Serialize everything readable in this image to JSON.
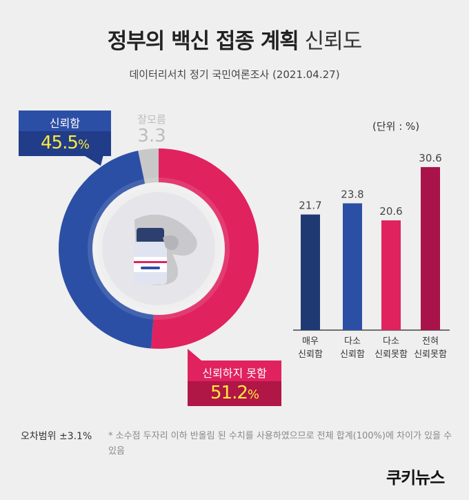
{
  "title": {
    "bold": "정부의 백신 접종 계획",
    "light": "신뢰도"
  },
  "subtitle": "데이터리서치 정기 국민여론조사 (2021.04.27)",
  "unit": "(단위 : %)",
  "colors": {
    "trust": "#2c4fa6",
    "distrust": "#e0225f",
    "dont_know": "#c8c8c8"
  },
  "chart_data": [
    {
      "type": "pie",
      "categories": [
        "신뢰함",
        "신뢰하지 못함",
        "잘모름"
      ],
      "values": [
        45.5,
        51.2,
        3.3
      ],
      "value_labels": [
        "45.5",
        "51.2",
        "3.3"
      ],
      "percent_sign": "%",
      "colors": [
        "#2c4fa6",
        "#e0225f",
        "#c8c8c8"
      ],
      "style": "donut"
    },
    {
      "type": "bar",
      "categories": [
        [
          "매우",
          "신뢰함"
        ],
        [
          "다소",
          "신뢰함"
        ],
        [
          "다소",
          "신뢰못함"
        ],
        [
          "전혀",
          "신뢰못함"
        ]
      ],
      "values": [
        21.7,
        23.8,
        20.6,
        30.6
      ],
      "value_labels": [
        "21.7",
        "23.8",
        "20.6",
        "30.6"
      ],
      "colors": [
        "#1f3a73",
        "#2c4fa6",
        "#e0225f",
        "#a8144a"
      ],
      "ylim": [
        0,
        35
      ]
    }
  ],
  "footer": {
    "margin_label": "오차범위 ±3.1%",
    "note": "* 소수점 두자리 이하 반올림 된 수치를 사용하였으므로 전체 합계(100%)에 차이가 있을 수 있음"
  },
  "logo": "쿠키뉴스"
}
